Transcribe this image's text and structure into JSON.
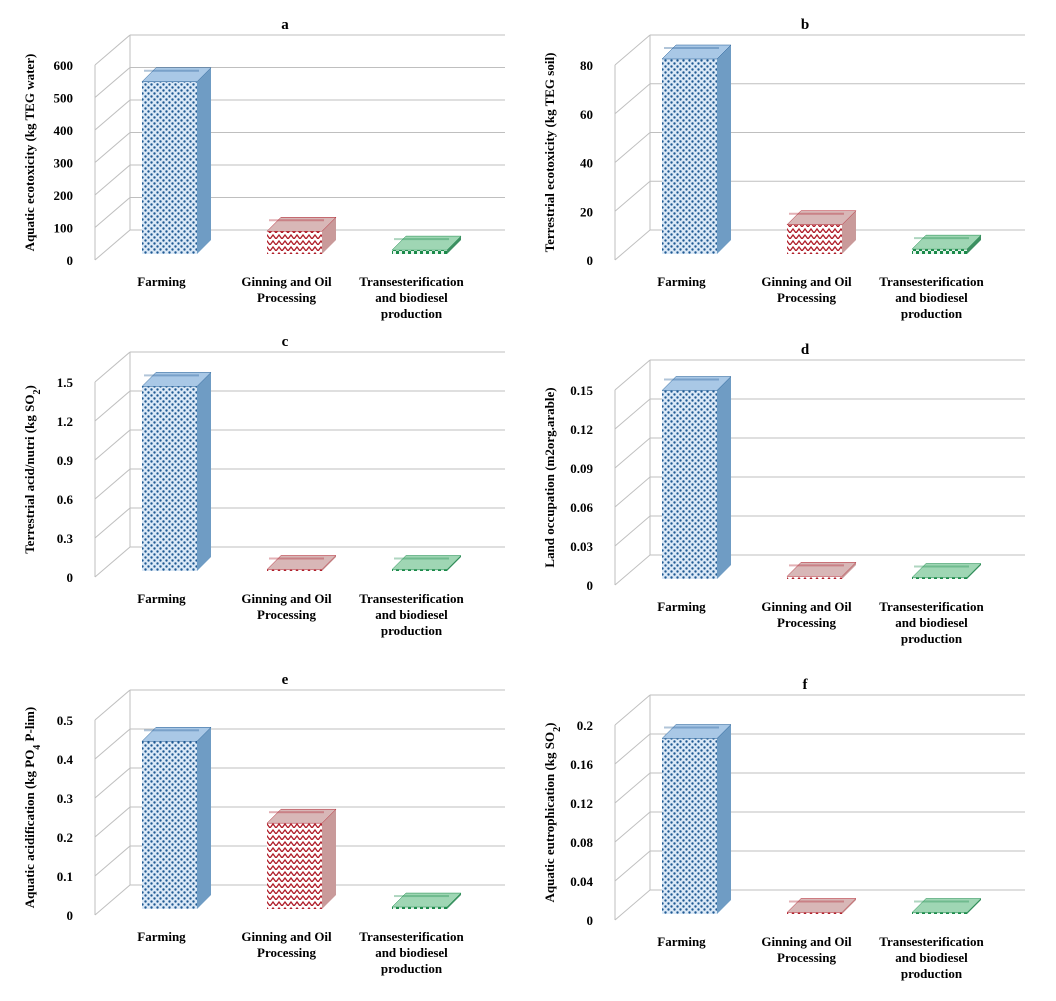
{
  "styles": {
    "farming": {
      "front": "#dbe9f7",
      "dot": "#1f5a93",
      "side": "#6f9cc4",
      "top": "#a9c8e6"
    },
    "ginning": {
      "front": "#ffffff",
      "dot": "#b01e2a",
      "side": "#c99a9a",
      "top": "#d8b7b7"
    },
    "trans": {
      "front": "#e6f5ec",
      "dot": "#1b8a4a",
      "side": "#3c8f61",
      "top": "#9fd6b4"
    },
    "grid": "#bfbfbf",
    "axis": "#7f7f7f"
  },
  "chart_data": [
    {
      "type": "bar",
      "panel": "a",
      "title": "a",
      "ylabel": "Aquatic ecotoxicity (kg TEG water)",
      "categories": [
        [
          "Farming"
        ],
        [
          "Ginning and  Oil",
          "Processing"
        ],
        [
          "Transesterification",
          "and biodiesel",
          "production"
        ]
      ],
      "values": [
        530,
        70,
        12
      ],
      "ylim": [
        0,
        600
      ],
      "ticks": [
        "0",
        "100",
        "200",
        "300",
        "400",
        "500",
        "600"
      ]
    },
    {
      "type": "bar",
      "panel": "b",
      "title": "b",
      "ylabel": "Terrestrial ecotoxicity (kg TEG soil)",
      "categories": [
        [
          "Farming"
        ],
        [
          "Ginning and  Oil",
          "Processing"
        ],
        [
          "Transesterification",
          "and biodiesel",
          "production"
        ]
      ],
      "values": [
        80,
        12,
        2
      ],
      "ylim": [
        0,
        80
      ],
      "ticks": [
        "0",
        "20",
        "40",
        "60",
        "80"
      ]
    },
    {
      "type": "bar",
      "panel": "c",
      "title": "c",
      "ylabel_parts": [
        "Terrestrial acid/nutri (kg SO",
        "2",
        ")"
      ],
      "categories": [
        [
          "Farming"
        ],
        [
          "Ginning and  Oil",
          "Processing"
        ],
        [
          "Transesterification",
          "and biodiesel",
          "production"
        ]
      ],
      "values": [
        1.42,
        0.01,
        0.005
      ],
      "ylim": [
        0,
        1.5
      ],
      "ticks": [
        "0",
        "0.3",
        "0.6",
        "0.9",
        "1.2",
        "1.5"
      ]
    },
    {
      "type": "bar",
      "panel": "d",
      "title": "d",
      "ylabel": "Land occupation (m2org.arable)",
      "categories": [
        [
          "Farming"
        ],
        [
          "Ginning and  Oil",
          "Processing"
        ],
        [
          "Transesterification",
          "and biodiesel",
          "production"
        ]
      ],
      "values": [
        0.145,
        0.002,
        0.001
      ],
      "ylim": [
        0,
        0.15
      ],
      "ticks": [
        "0",
        "0.03",
        "0.06",
        "0.09",
        "0.12",
        "0.15"
      ]
    },
    {
      "type": "bar",
      "panel": "e",
      "title": "e",
      "ylabel_parts": [
        "Aquatic acidification (kg PO",
        "4",
        " P-lim)"
      ],
      "categories": [
        [
          "Farming"
        ],
        [
          "Ginning and  Oil",
          "Processing"
        ],
        [
          "Transesterification",
          "and biodiesel",
          "production"
        ]
      ],
      "values": [
        0.43,
        0.22,
        0.005
      ],
      "ylim": [
        0,
        0.5
      ],
      "ticks": [
        "0",
        "0.1",
        "0.2",
        "0.3",
        "0.4",
        "0.5"
      ]
    },
    {
      "type": "bar",
      "panel": "f",
      "title": "f",
      "ylabel_parts": [
        "Aquatic eutrophication (kg SO",
        "2",
        ")"
      ],
      "categories": [
        [
          "Farming"
        ],
        [
          "Ginning and  Oil",
          "Processing"
        ],
        [
          "Transesterification",
          "and biodiesel",
          "production"
        ]
      ],
      "values": [
        0.18,
        0.001,
        0.001
      ],
      "ylim": [
        0,
        0.2
      ],
      "ticks": [
        "0",
        "0.04",
        "0.08",
        "0.12",
        "0.16",
        "0.2"
      ]
    }
  ]
}
